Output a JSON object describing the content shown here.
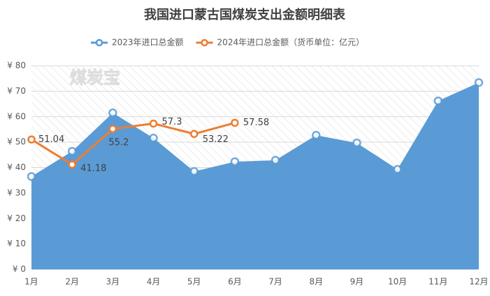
{
  "chart_data": {
    "type": "area-line",
    "title": "我国进口蒙古国煤炭支出金额明细表",
    "watermark": "煤炭宝",
    "categories": [
      "1月",
      "2月",
      "3月",
      "4月",
      "5月",
      "6月",
      "7月",
      "8月",
      "9月",
      "10月",
      "11月",
      "12月"
    ],
    "series": [
      {
        "name": "2023年进口总金额",
        "color": "#5b9bd5",
        "values": [
          36.5,
          46.4,
          61.5,
          51.6,
          38.5,
          42.3,
          42.9,
          52.7,
          49.7,
          39.3,
          66.2,
          73.4
        ]
      },
      {
        "name": "2024年进口总金额（货币单位：亿元）",
        "color": "#ed7d31",
        "values": [
          51.04,
          41.18,
          55.2,
          57.3,
          53.22,
          57.58,
          null,
          null,
          null,
          null,
          null,
          null
        ]
      }
    ],
    "ylim": [
      0,
      80
    ],
    "yticks": [
      {
        "value": 0,
        "label": "¥ 0"
      },
      {
        "value": 10,
        "label": "¥ 10"
      },
      {
        "value": 20,
        "label": "¥ 20"
      },
      {
        "value": 30,
        "label": "¥ 30"
      },
      {
        "value": 40,
        "label": "¥ 40"
      },
      {
        "value": 50,
        "label": "¥ 50"
      },
      {
        "value": 60,
        "label": "¥ 60"
      },
      {
        "value": 70,
        "label": "¥ 70"
      },
      {
        "value": 80,
        "label": "¥ 80"
      }
    ],
    "grid": true
  }
}
